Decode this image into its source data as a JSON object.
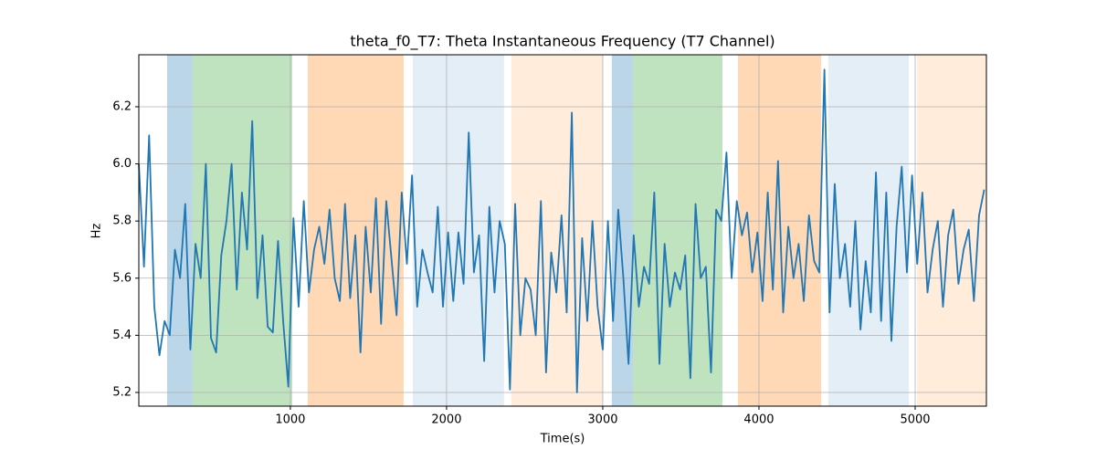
{
  "chart_data": {
    "type": "line",
    "title": "theta_f0_T7: Theta Instantaneous Frequency (T7 Channel)",
    "xlabel": "Time(s)",
    "ylabel": "Hz",
    "xlim": [
      30,
      5456
    ],
    "ylim": [
      5.152,
      6.382
    ],
    "xticks": [
      1000,
      2000,
      3000,
      4000,
      5000
    ],
    "yticks": [
      5.2,
      5.4,
      5.6,
      5.8,
      {
        "value": 6,
        "label": "6.0"
      },
      6.2
    ],
    "grid": true,
    "spans": [
      {
        "start": 211,
        "end": 374,
        "color": "#1f77b4",
        "opacity": 0.3
      },
      {
        "start": 374,
        "end": 1012,
        "color": "#2ca02c",
        "opacity": 0.3
      },
      {
        "start": 1111,
        "end": 1725,
        "color": "#ff7f0e",
        "opacity": 0.3
      },
      {
        "start": 1784,
        "end": 2368,
        "color": "#1f77b4",
        "opacity": 0.12
      },
      {
        "start": 2415,
        "end": 3000,
        "color": "#ff7f0e",
        "opacity": 0.15
      },
      {
        "start": 3058,
        "end": 3193,
        "color": "#1f77b4",
        "opacity": 0.3
      },
      {
        "start": 3193,
        "end": 3766,
        "color": "#2ca02c",
        "opacity": 0.3
      },
      {
        "start": 3865,
        "end": 4398,
        "color": "#ff7f0e",
        "opacity": 0.3
      },
      {
        "start": 4444,
        "end": 4959,
        "color": "#1f77b4",
        "opacity": 0.12
      },
      {
        "start": 5012,
        "end": 5456,
        "color": "#ff7f0e",
        "opacity": 0.15
      }
    ],
    "x": [
      30,
      63,
      96,
      129,
      162,
      195,
      228,
      261,
      294,
      327,
      360,
      393,
      426,
      459,
      492,
      525,
      558,
      591,
      624,
      657,
      690,
      723,
      756,
      789,
      822,
      855,
      888,
      921,
      954,
      987,
      1020,
      1053,
      1086,
      1119,
      1152,
      1185,
      1218,
      1251,
      1284,
      1317,
      1350,
      1383,
      1416,
      1449,
      1482,
      1515,
      1548,
      1581,
      1614,
      1647,
      1680,
      1713,
      1746,
      1779,
      1812,
      1845,
      1878,
      1911,
      1944,
      1977,
      2010,
      2043,
      2076,
      2109,
      2142,
      2175,
      2208,
      2241,
      2274,
      2307,
      2340,
      2373,
      2406,
      2439,
      2472,
      2505,
      2538,
      2571,
      2604,
      2637,
      2670,
      2703,
      2736,
      2769,
      2802,
      2835,
      2868,
      2901,
      2934,
      2967,
      3000,
      3033,
      3066,
      3099,
      3132,
      3165,
      3198,
      3231,
      3264,
      3297,
      3330,
      3363,
      3396,
      3429,
      3462,
      3495,
      3528,
      3561,
      3594,
      3627,
      3660,
      3693,
      3726,
      3759,
      3792,
      3825,
      3858,
      3891,
      3924,
      3957,
      3990,
      4023,
      4056,
      4089,
      4122,
      4155,
      4188,
      4221,
      4254,
      4287,
      4320,
      4353,
      4386,
      4419,
      4452,
      4485,
      4518,
      4551,
      4584,
      4617,
      4650,
      4683,
      4716,
      4749,
      4782,
      4815,
      4848,
      4881,
      4914,
      4947,
      4980,
      5013,
      5046,
      5079,
      5112,
      5145,
      5178,
      5211,
      5244,
      5277,
      5310,
      5343,
      5376,
      5409,
      5442
    ],
    "series": [
      {
        "color": "#1f77b4",
        "values": [
          6.0,
          5.64,
          6.1,
          5.5,
          5.33,
          5.45,
          5.4,
          5.7,
          5.6,
          5.86,
          5.35,
          5.72,
          5.6,
          6.0,
          5.39,
          5.34,
          5.68,
          5.8,
          6.0,
          5.56,
          5.9,
          5.7,
          6.15,
          5.53,
          5.75,
          5.43,
          5.41,
          5.73,
          5.45,
          5.22,
          5.81,
          5.5,
          5.87,
          5.55,
          5.7,
          5.78,
          5.65,
          5.84,
          5.6,
          5.52,
          5.86,
          5.53,
          5.75,
          5.34,
          5.78,
          5.55,
          5.88,
          5.44,
          5.87,
          5.67,
          5.47,
          5.9,
          5.65,
          5.96,
          5.5,
          5.7,
          5.62,
          5.55,
          5.85,
          5.5,
          5.76,
          5.52,
          5.76,
          5.58,
          6.11,
          5.62,
          5.75,
          5.31,
          5.85,
          5.55,
          5.8,
          5.72,
          5.21,
          5.86,
          5.4,
          5.6,
          5.56,
          5.4,
          5.87,
          5.27,
          5.69,
          5.55,
          5.82,
          5.48,
          6.18,
          5.2,
          5.74,
          5.45,
          5.8,
          5.5,
          5.35,
          5.8,
          5.45,
          5.84,
          5.6,
          5.3,
          5.75,
          5.5,
          5.64,
          5.58,
          5.9,
          5.3,
          5.72,
          5.5,
          5.62,
          5.56,
          5.68,
          5.25,
          5.86,
          5.6,
          5.64,
          5.27,
          5.84,
          5.8,
          6.04,
          5.6,
          5.87,
          5.75,
          5.83,
          5.62,
          5.76,
          5.52,
          5.9,
          5.56,
          6.01,
          5.48,
          5.78,
          5.6,
          5.72,
          5.52,
          5.82,
          5.66,
          5.62,
          6.33,
          5.48,
          5.93,
          5.6,
          5.72,
          5.5,
          5.8,
          5.42,
          5.66,
          5.48,
          5.97,
          5.45,
          5.9,
          5.38,
          5.78,
          5.99,
          5.62,
          5.96,
          5.65,
          5.9,
          5.55,
          5.7,
          5.8,
          5.5,
          5.75,
          5.84,
          5.58,
          5.7,
          5.77,
          5.52,
          5.82,
          5.91
        ]
      }
    ]
  }
}
